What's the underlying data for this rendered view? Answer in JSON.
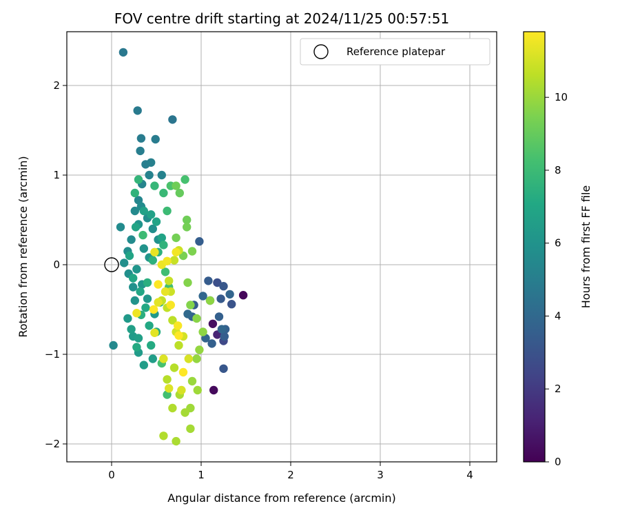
{
  "chart_data": {
    "type": "scatter",
    "title": "FOV centre drift starting at 2024/11/25 00:57:51",
    "xlabel": "Angular distance from reference (arcmin)",
    "ylabel": "Rotation from reference (arcmin)",
    "xlim": [
      -0.5,
      4.3
    ],
    "ylim": [
      -2.2,
      2.6
    ],
    "xticks": [
      "0",
      "1",
      "2",
      "3",
      "4"
    ],
    "yticks": [
      "−2",
      "−1",
      "0",
      "1",
      "2"
    ],
    "xtick_values": [
      0,
      1,
      2,
      3,
      4
    ],
    "ytick_values": [
      -2,
      -1,
      0,
      1,
      2
    ],
    "grid": true,
    "legend": {
      "placement": "top-right",
      "entries": [
        "Reference platepar"
      ]
    },
    "reference_point": {
      "x": 0,
      "y": 0
    },
    "colorbar": {
      "label": "Hours from first FF file",
      "range": [
        0,
        11.8
      ],
      "ticks": [
        "0",
        "2",
        "4",
        "6",
        "8",
        "10"
      ],
      "tick_values": [
        0,
        2,
        4,
        6,
        8,
        10
      ],
      "colormap": "viridis"
    },
    "series": [
      {
        "points": [
          [
            1.47,
            -0.34,
            0.2
          ],
          [
            1.14,
            -1.4,
            0.3
          ],
          [
            1.13,
            -0.66,
            0.5
          ],
          [
            1.18,
            -0.78,
            1.2
          ],
          [
            1.25,
            -0.85,
            2.6
          ],
          [
            1.18,
            -0.2,
            2.9
          ],
          [
            1.34,
            -0.44,
            3.0
          ],
          [
            1.25,
            -0.24,
            3.2
          ],
          [
            1.22,
            -0.38,
            3.3
          ],
          [
            1.25,
            -1.16,
            3.2
          ],
          [
            1.08,
            -0.18,
            3.4
          ],
          [
            0.98,
            0.26,
            3.5
          ],
          [
            1.26,
            -0.8,
            3.5
          ],
          [
            1.1,
            -0.4,
            3.3
          ],
          [
            0.92,
            -0.45,
            3.4
          ],
          [
            1.12,
            -0.88,
            3.6
          ],
          [
            1.27,
            -0.72,
            3.6
          ],
          [
            1.2,
            -0.58,
            3.6
          ],
          [
            1.32,
            -0.33,
            3.8
          ],
          [
            1.02,
            -0.35,
            3.9
          ],
          [
            0.9,
            -0.58,
            3.7
          ],
          [
            1.05,
            -0.82,
            3.8
          ],
          [
            1.23,
            -0.72,
            3.9
          ],
          [
            0.85,
            -0.55,
            4.0
          ],
          [
            0.68,
            1.62,
            4.6
          ],
          [
            0.13,
            2.37,
            4.7
          ],
          [
            0.29,
            1.72,
            4.8
          ],
          [
            0.33,
            1.41,
            4.9
          ],
          [
            0.49,
            1.4,
            4.9
          ],
          [
            0.32,
            1.27,
            5.0
          ],
          [
            0.38,
            1.12,
            5.0
          ],
          [
            0.44,
            1.14,
            5.1
          ],
          [
            0.56,
            1.0,
            5.2
          ],
          [
            0.42,
            1.0,
            5.2
          ],
          [
            0.34,
            0.9,
            5.3
          ],
          [
            0.3,
            0.72,
            5.4
          ],
          [
            0.26,
            0.6,
            5.5
          ],
          [
            0.1,
            0.42,
            5.6
          ],
          [
            0.22,
            0.28,
            5.6
          ],
          [
            0.18,
            0.15,
            5.7
          ],
          [
            0.14,
            0.02,
            5.8
          ],
          [
            0.19,
            -0.1,
            5.8
          ],
          [
            0.24,
            -0.25,
            5.9
          ],
          [
            0.26,
            -0.4,
            6.0
          ],
          [
            0.02,
            -0.9,
            5.5
          ],
          [
            0.33,
            0.65,
            5.6
          ],
          [
            0.4,
            0.52,
            5.7
          ],
          [
            0.46,
            0.4,
            5.8
          ],
          [
            0.52,
            0.28,
            5.9
          ],
          [
            0.3,
            0.45,
            6.0
          ],
          [
            0.36,
            0.18,
            6.0
          ],
          [
            0.42,
            0.08,
            6.1
          ],
          [
            0.28,
            -0.05,
            6.1
          ],
          [
            0.34,
            -0.22,
            6.2
          ],
          [
            0.4,
            -0.38,
            6.2
          ],
          [
            0.48,
            -0.55,
            6.3
          ],
          [
            0.18,
            -0.6,
            6.3
          ],
          [
            0.24,
            -0.8,
            6.4
          ],
          [
            0.3,
            -0.98,
            6.4
          ],
          [
            0.36,
            -1.12,
            6.5
          ],
          [
            0.46,
            -1.05,
            6.5
          ],
          [
            0.3,
            -0.82,
            6.6
          ],
          [
            0.22,
            -0.72,
            6.6
          ],
          [
            0.36,
            0.6,
            6.7
          ],
          [
            0.44,
            0.56,
            6.7
          ],
          [
            0.5,
            0.48,
            6.8
          ],
          [
            0.56,
            0.3,
            6.8
          ],
          [
            0.27,
            0.42,
            6.9
          ],
          [
            0.2,
            0.1,
            6.9
          ],
          [
            0.24,
            -0.15,
            7.0
          ],
          [
            0.32,
            -0.3,
            7.0
          ],
          [
            0.38,
            -0.48,
            7.1
          ],
          [
            0.42,
            -0.68,
            7.1
          ],
          [
            0.28,
            -0.92,
            7.2
          ],
          [
            0.44,
            -0.9,
            7.2
          ],
          [
            0.5,
            -0.75,
            7.3
          ],
          [
            0.54,
            -0.42,
            7.3
          ],
          [
            0.33,
            -0.56,
            7.4
          ],
          [
            0.4,
            -0.2,
            7.4
          ],
          [
            0.46,
            0.05,
            7.5
          ],
          [
            0.52,
            0.14,
            7.5
          ],
          [
            0.58,
            0.22,
            7.6
          ],
          [
            0.26,
            0.8,
            7.6
          ],
          [
            0.3,
            0.95,
            7.7
          ],
          [
            0.48,
            0.88,
            7.8
          ],
          [
            0.58,
            0.8,
            7.9
          ],
          [
            0.62,
            0.6,
            8.0
          ],
          [
            0.35,
            0.33,
            8.0
          ],
          [
            0.6,
            -0.08,
            8.1
          ],
          [
            0.64,
            -0.25,
            8.2
          ],
          [
            0.56,
            -1.1,
            8.3
          ],
          [
            0.62,
            -1.45,
            8.2
          ],
          [
            0.66,
            0.88,
            8.4
          ],
          [
            0.82,
            0.95,
            8.3
          ],
          [
            0.72,
            0.88,
            9.2
          ],
          [
            0.76,
            0.8,
            9.0
          ],
          [
            0.84,
            0.5,
            9.2
          ],
          [
            0.84,
            0.42,
            9.3
          ],
          [
            0.72,
            0.3,
            9.3
          ],
          [
            0.8,
            0.1,
            9.4
          ],
          [
            0.9,
            0.15,
            9.5
          ],
          [
            0.85,
            -0.2,
            9.6
          ],
          [
            0.88,
            -0.45,
            9.6
          ],
          [
            0.95,
            -0.6,
            9.7
          ],
          [
            1.02,
            -0.75,
            9.8
          ],
          [
            1.1,
            -0.4,
            9.8
          ],
          [
            0.98,
            -0.95,
            9.9
          ],
          [
            0.95,
            -1.05,
            9.9
          ],
          [
            0.9,
            -1.3,
            10.0
          ],
          [
            0.96,
            -1.4,
            10.1
          ],
          [
            0.88,
            -1.6,
            10.1
          ],
          [
            0.88,
            -1.83,
            10.2
          ],
          [
            0.82,
            -1.65,
            10.2
          ],
          [
            0.76,
            -1.45,
            10.3
          ],
          [
            0.72,
            -1.97,
            10.3
          ],
          [
            0.58,
            -1.91,
            10.4
          ],
          [
            0.68,
            -1.6,
            10.4
          ],
          [
            0.62,
            -1.28,
            10.5
          ],
          [
            0.7,
            -1.15,
            10.5
          ],
          [
            0.75,
            -0.9,
            10.6
          ],
          [
            0.68,
            -0.62,
            10.6
          ],
          [
            0.62,
            -0.48,
            10.7
          ],
          [
            0.56,
            -0.4,
            10.7
          ],
          [
            0.64,
            -0.18,
            10.8
          ],
          [
            0.7,
            0.05,
            10.8
          ],
          [
            0.75,
            0.16,
            10.9
          ],
          [
            0.66,
            -0.3,
            10.9
          ],
          [
            0.72,
            -0.75,
            11.0
          ],
          [
            0.8,
            -0.8,
            11.0
          ],
          [
            0.86,
            -1.05,
            11.1
          ],
          [
            0.78,
            -1.4,
            11.1
          ],
          [
            0.64,
            -1.38,
            11.2
          ],
          [
            0.58,
            -1.05,
            11.2
          ],
          [
            0.48,
            -0.76,
            11.3
          ],
          [
            0.52,
            -0.42,
            11.3
          ],
          [
            0.6,
            -0.3,
            11.4
          ],
          [
            0.48,
            0.14,
            11.4
          ],
          [
            0.28,
            -0.54,
            11.5
          ],
          [
            0.56,
            0.0,
            11.5
          ],
          [
            0.62,
            0.04,
            11.6
          ],
          [
            0.72,
            0.14,
            11.6
          ],
          [
            0.66,
            -0.45,
            11.7
          ],
          [
            0.74,
            -0.68,
            11.7
          ],
          [
            0.47,
            -0.5,
            11.8
          ],
          [
            0.52,
            -0.22,
            11.8
          ],
          [
            0.8,
            -1.2,
            11.8
          ],
          [
            0.75,
            -0.79,
            11.9
          ]
        ]
      }
    ]
  }
}
